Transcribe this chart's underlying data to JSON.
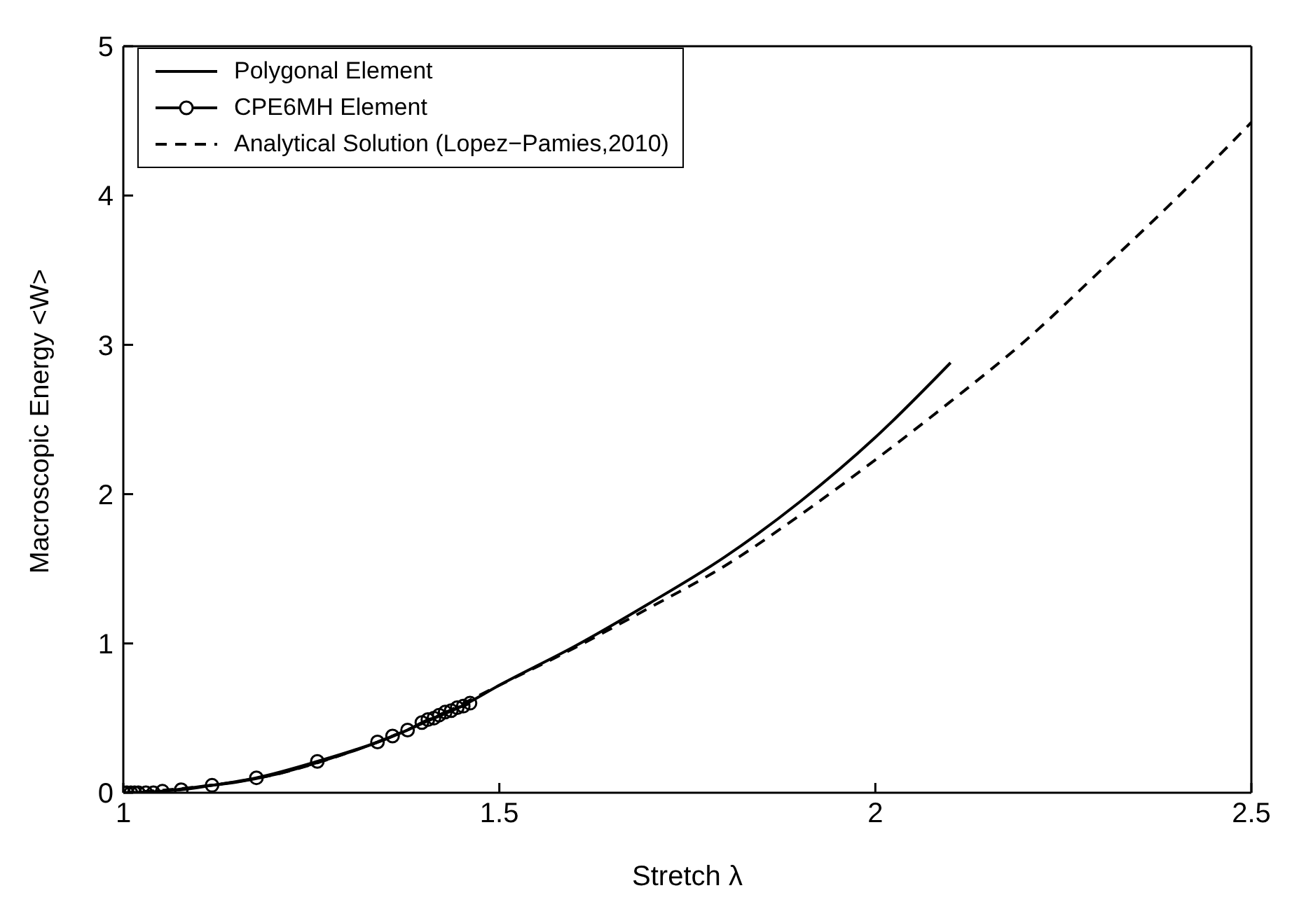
{
  "chart_data": {
    "type": "line",
    "xlabel": "Stretch λ",
    "ylabel": "Macroscopic Energy <W>",
    "xlim": [
      1,
      2.5
    ],
    "ylim": [
      0,
      5
    ],
    "xticks": [
      1,
      1.5,
      2,
      2.5
    ],
    "yticks": [
      0,
      1,
      2,
      3,
      4,
      5
    ],
    "legend": "top left",
    "series": [
      {
        "name": "Polygonal Element",
        "color": "#000000",
        "marker": "none",
        "line_style": "solid",
        "x": [
          1,
          1.05,
          1.1,
          1.15,
          1.2,
          1.25,
          1.3,
          1.35,
          1.4,
          1.45,
          1.5,
          1.6,
          1.7,
          1.8,
          1.9,
          2,
          2.1
        ],
        "values": [
          0,
          0.01,
          0.04,
          0.07,
          0.12,
          0.19,
          0.27,
          0.36,
          0.47,
          0.58,
          0.72,
          0.98,
          1.27,
          1.58,
          1.95,
          2.38,
          2.88
        ]
      },
      {
        "name": "CPE6MH Element",
        "color": "#000000",
        "marker": "circle",
        "line_style": "solid",
        "x": [
          1,
          1.005,
          1.01,
          1.015,
          1.02,
          1.03,
          1.04,
          1.052,
          1.077,
          1.118,
          1.177,
          1.258,
          1.338,
          1.358,
          1.378,
          1.397,
          1.405,
          1.413,
          1.42,
          1.428,
          1.436,
          1.444,
          1.452,
          1.461
        ],
        "values": [
          0,
          0,
          0,
          0,
          0,
          0,
          0,
          0.01,
          0.02,
          0.05,
          0.1,
          0.21,
          0.34,
          0.38,
          0.42,
          0.47,
          0.49,
          0.5,
          0.52,
          0.54,
          0.55,
          0.57,
          0.58,
          0.6
        ]
      },
      {
        "name": "Analytical Solution (Lopez−Pamies,2010)",
        "color": "#000000",
        "marker": "none",
        "line_style": "dashed",
        "x": [
          1,
          1.1,
          1.2,
          1.3,
          1.4,
          1.5,
          1.6,
          1.7,
          1.8,
          1.9,
          2,
          2.1,
          2.2,
          2.3,
          2.4,
          2.5
        ],
        "values": [
          0,
          0.04,
          0.12,
          0.27,
          0.47,
          0.72,
          0.97,
          1.24,
          1.52,
          1.86,
          2.23,
          2.62,
          3.03,
          3.5,
          3.98,
          4.49
        ]
      }
    ]
  }
}
